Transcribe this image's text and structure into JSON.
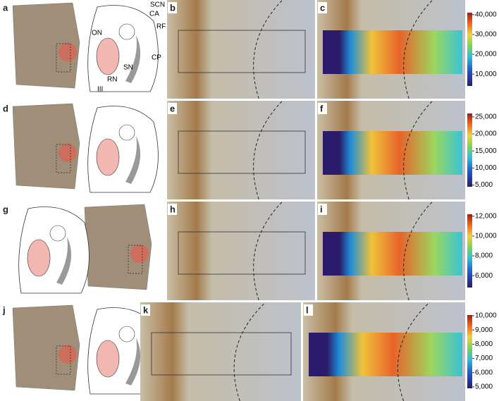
{
  "rows": [
    {
      "letters": [
        "a",
        "b",
        "c"
      ],
      "anatomy": [
        "SCN",
        "CA",
        "RF",
        "ON",
        "CP",
        "SN",
        "RN",
        "III"
      ],
      "colorbar": {
        "lim": [
          4000,
          41000
        ],
        "ticks": [
          {
            "value": 10000,
            "label": "10,000"
          },
          {
            "value": 20000,
            "label": "20,000"
          },
          {
            "value": 30000,
            "label": "30,000"
          },
          {
            "value": 40000,
            "label": "40,000"
          }
        ]
      }
    },
    {
      "letters": [
        "d",
        "e",
        "f"
      ],
      "colorbar": {
        "lim": [
          4500,
          26000
        ],
        "ticks": [
          {
            "value": 5000,
            "label": "5,000"
          },
          {
            "value": 10000,
            "label": "10,000"
          },
          {
            "value": 15000,
            "label": "15,000"
          },
          {
            "value": 20000,
            "label": "20,000"
          },
          {
            "value": 25000,
            "label": "25,000"
          }
        ]
      }
    },
    {
      "letters": [
        "g",
        "h",
        "i"
      ],
      "colorbar": {
        "lim": [
          4800,
          12200
        ],
        "ticks": [
          {
            "value": 6000,
            "label": "6,000"
          },
          {
            "value": 8000,
            "label": "8,000"
          },
          {
            "value": 10000,
            "label": "10,000"
          },
          {
            "value": 12000,
            "label": "12,000"
          }
        ]
      }
    },
    {
      "letters": [
        "j",
        "k",
        "l"
      ],
      "colorbar": {
        "lim": [
          4900,
          10050
        ],
        "ticks": [
          {
            "value": 5000,
            "label": "5,000"
          },
          {
            "value": 6000,
            "label": "6,000"
          },
          {
            "value": 7000,
            "label": "7,000"
          },
          {
            "value": 8000,
            "label": "8,000"
          },
          {
            "value": 9000,
            "label": "9,000"
          },
          {
            "value": 10000,
            "label": "10,000"
          }
        ]
      }
    }
  ]
}
